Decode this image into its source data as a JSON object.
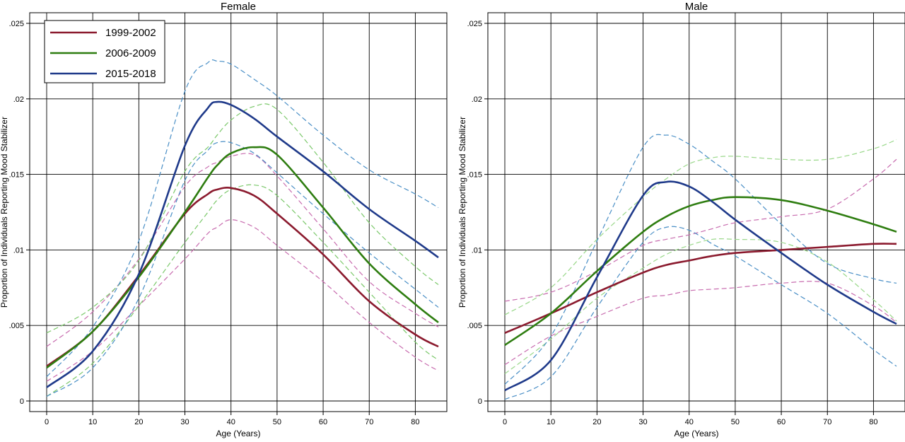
{
  "chart_data": [
    {
      "type": "line",
      "title": "Female",
      "xlabel": "Age (Years)",
      "ylabel": "Proportion of Individuals Reporting Mood Stabilizer",
      "xlim": [
        0,
        85
      ],
      "ylim": [
        0,
        0.025
      ],
      "grid": true,
      "legend_position": "top-left",
      "xticks": [
        0,
        10,
        20,
        30,
        40,
        50,
        60,
        70,
        80
      ],
      "xtick_labels": [
        "0",
        "10",
        "20",
        "30",
        "40",
        "50",
        "60",
        "70",
        "80"
      ],
      "yticks": [
        0,
        0.005,
        0.01,
        0.015,
        0.02,
        0.025
      ],
      "ytick_labels": [
        "0",
        ".005",
        ".01",
        ".015",
        ".02",
        ".025"
      ],
      "legend": [
        "1999-2002",
        "2006-2009",
        "2015-2018"
      ],
      "x": [
        0,
        10,
        20,
        30,
        35,
        37,
        40,
        45,
        50,
        60,
        70,
        80,
        85
      ],
      "series": [
        {
          "name": "1999-2002",
          "color": "#8B1A2E",
          "style": "solid",
          "values": [
            0.0023,
            0.0046,
            0.0083,
            0.0124,
            0.0137,
            0.014,
            0.0141,
            0.0136,
            0.0124,
            0.0097,
            0.0066,
            0.0044,
            0.0036
          ]
        },
        {
          "name": "",
          "color": "#C86CAF",
          "style": "dashed",
          "values": [
            0.0036,
            0.0059,
            0.0094,
            0.0142,
            0.0155,
            0.0158,
            0.0162,
            0.0163,
            0.0149,
            0.0114,
            0.0079,
            0.0058,
            0.0049
          ]
        },
        {
          "name": "",
          "color": "#C86CAF",
          "style": "dashed",
          "values": [
            0.0013,
            0.0033,
            0.0063,
            0.0094,
            0.0111,
            0.0115,
            0.012,
            0.0115,
            0.0103,
            0.0079,
            0.0052,
            0.0029,
            0.002
          ]
        },
        {
          "name": "2006-2009",
          "color": "#2E7D10",
          "style": "solid",
          "values": [
            0.0022,
            0.0046,
            0.0082,
            0.0125,
            0.0148,
            0.0156,
            0.0164,
            0.0168,
            0.0163,
            0.0128,
            0.0091,
            0.0064,
            0.0052
          ]
        },
        {
          "name": "",
          "color": "#7BC86A",
          "style": "dashed",
          "values": [
            0.0045,
            0.0062,
            0.0093,
            0.0152,
            0.0168,
            0.0176,
            0.0186,
            0.0195,
            0.0193,
            0.0158,
            0.0118,
            0.0089,
            0.0077
          ]
        },
        {
          "name": "",
          "color": "#7BC86A",
          "style": "dashed",
          "values": [
            0.0003,
            0.0025,
            0.0063,
            0.0105,
            0.0125,
            0.0133,
            0.014,
            0.0143,
            0.0136,
            0.0105,
            0.0072,
            0.0039,
            0.0027
          ]
        },
        {
          "name": "2015-2018",
          "color": "#1F3A8A",
          "style": "solid",
          "values": [
            0.0009,
            0.0033,
            0.0084,
            0.0169,
            0.0194,
            0.0198,
            0.0196,
            0.0187,
            0.0175,
            0.0152,
            0.0127,
            0.0106,
            0.0095
          ]
        },
        {
          "name": "",
          "color": "#4A8FC6",
          "style": "dashed",
          "values": [
            0.0016,
            0.0049,
            0.0106,
            0.0205,
            0.0224,
            0.0225,
            0.0223,
            0.0213,
            0.0202,
            0.0176,
            0.0153,
            0.0137,
            0.0128
          ]
        },
        {
          "name": "",
          "color": "#4A8FC6",
          "style": "dashed",
          "values": [
            0.0003,
            0.0022,
            0.0068,
            0.0146,
            0.0166,
            0.0171,
            0.0171,
            0.0164,
            0.0151,
            0.0124,
            0.0098,
            0.0074,
            0.0062
          ]
        }
      ]
    },
    {
      "type": "line",
      "title": "Male",
      "xlabel": "Age (Years)",
      "ylabel": "Proportion of Individuals Reporting Mood Stabilizer",
      "xlim": [
        0,
        85
      ],
      "ylim": [
        0,
        0.025
      ],
      "grid": true,
      "xticks": [
        0,
        10,
        20,
        30,
        40,
        50,
        60,
        70,
        80
      ],
      "xtick_labels": [
        "0",
        "10",
        "20",
        "30",
        "40",
        "50",
        "60",
        "70",
        "80"
      ],
      "yticks": [
        0,
        0.005,
        0.01,
        0.015,
        0.02,
        0.025
      ],
      "ytick_labels": [
        "0",
        ".005",
        ".01",
        ".015",
        ".02",
        ".025"
      ],
      "x": [
        0,
        10,
        20,
        30,
        35,
        40,
        45,
        50,
        60,
        70,
        80,
        85
      ],
      "series": [
        {
          "name": "1999-2002",
          "color": "#8B1A2E",
          "style": "solid",
          "values": [
            0.0045,
            0.0058,
            0.0072,
            0.0085,
            0.009,
            0.0093,
            0.0096,
            0.0098,
            0.01,
            0.0102,
            0.0104,
            0.0104
          ]
        },
        {
          "name": "",
          "color": "#C86CAF",
          "style": "dashed",
          "values": [
            0.0066,
            0.0072,
            0.0086,
            0.0103,
            0.0107,
            0.011,
            0.0114,
            0.0118,
            0.0122,
            0.0127,
            0.0147,
            0.016
          ]
        },
        {
          "name": "",
          "color": "#C86CAF",
          "style": "dashed",
          "values": [
            0.0024,
            0.0043,
            0.0056,
            0.0068,
            0.007,
            0.0073,
            0.0074,
            0.0075,
            0.0078,
            0.0078,
            0.0063,
            0.0052
          ]
        },
        {
          "name": "2006-2009",
          "color": "#2E7D10",
          "style": "solid",
          "values": [
            0.0037,
            0.0058,
            0.0086,
            0.0112,
            0.0122,
            0.0129,
            0.0133,
            0.0135,
            0.0133,
            0.0126,
            0.0117,
            0.0112
          ]
        },
        {
          "name": "",
          "color": "#9AD88A",
          "style": "dashed",
          "values": [
            0.0057,
            0.0075,
            0.0107,
            0.0135,
            0.0147,
            0.0157,
            0.0161,
            0.0162,
            0.016,
            0.016,
            0.0167,
            0.0173
          ]
        },
        {
          "name": "",
          "color": "#9AD88A",
          "style": "dashed",
          "values": [
            0.0018,
            0.0041,
            0.0068,
            0.0088,
            0.0097,
            0.0103,
            0.0107,
            0.0107,
            0.0105,
            0.0092,
            0.0067,
            0.0053
          ]
        },
        {
          "name": "2015-2018",
          "color": "#1F3A8A",
          "style": "solid",
          "values": [
            0.0007,
            0.0027,
            0.0082,
            0.0136,
            0.0145,
            0.0142,
            0.0132,
            0.012,
            0.0098,
            0.0077,
            0.0059,
            0.0051
          ]
        },
        {
          "name": "",
          "color": "#4A8FC6",
          "style": "dashed",
          "values": [
            0.0011,
            0.0043,
            0.0106,
            0.0168,
            0.0176,
            0.017,
            0.0159,
            0.0147,
            0.0117,
            0.0091,
            0.0081,
            0.0078
          ]
        },
        {
          "name": "",
          "color": "#4A8FC6",
          "style": "dashed",
          "values": [
            0.0001,
            0.0016,
            0.0062,
            0.0105,
            0.0115,
            0.0113,
            0.0104,
            0.0096,
            0.0077,
            0.0058,
            0.0034,
            0.0023
          ]
        }
      ]
    }
  ]
}
